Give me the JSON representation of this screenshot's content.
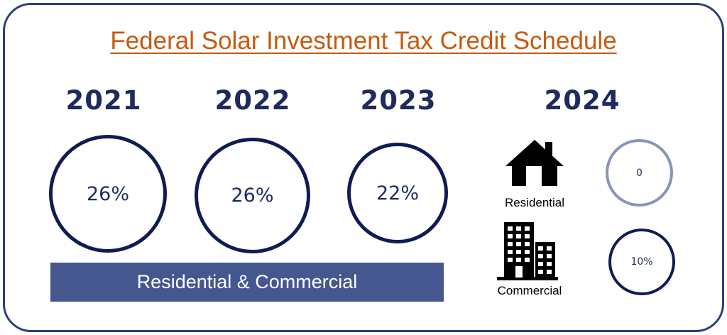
{
  "title": "Federal Solar Investment Tax Credit Schedule",
  "years": [
    {
      "year": "2021",
      "rate": "26%"
    },
    {
      "year": "2022",
      "rate": "26%"
    },
    {
      "year": "2023",
      "rate": "22%"
    }
  ],
  "year_2024": {
    "year": "2024",
    "residential": {
      "label": "Residential",
      "rate": "0",
      "icon": "house-icon"
    },
    "commercial": {
      "label": "Commercial",
      "rate": "10%",
      "icon": "office-building-icon"
    }
  },
  "banner_text": "Residential & Commercial",
  "colors": {
    "title": "#c55a11",
    "navy": "#1e2b5e",
    "ring": "#0f1c54",
    "ring_light": "#8894b8",
    "banner": "#44578f",
    "frame": "#2b3f7a"
  }
}
